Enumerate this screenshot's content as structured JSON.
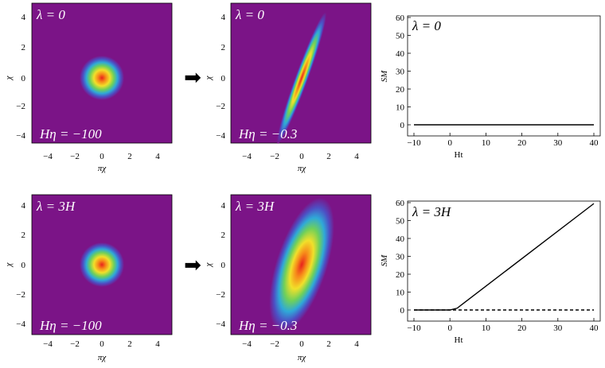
{
  "axes": {
    "phase_x_label": "πχ",
    "phase_y_label": "χ",
    "phase_ticks": [
      "-4",
      "-2",
      "0",
      "2",
      "4"
    ],
    "entropy_x_label": "Ht",
    "entropy_y_label": "SM",
    "entropy_x_ticks": [
      "-10",
      "0",
      "10",
      "20",
      "30",
      "40"
    ],
    "entropy_y_ticks": [
      "0",
      "10",
      "20",
      "30",
      "40",
      "50",
      "60"
    ]
  },
  "rows": [
    {
      "lambda_label": "λ = 0",
      "early_time_label": "Hη = −100",
      "late_time_label": "Hη = −0.3",
      "arrow": "➡"
    },
    {
      "lambda_label": "λ = 3H",
      "early_time_label": "Hη = −100",
      "late_time_label": "Hη = −0.3",
      "arrow": "➡"
    }
  ],
  "chart_data": [
    {
      "type": "line",
      "title": "λ = 0",
      "xlabel": "Ht",
      "ylabel": "SM",
      "xlim": [
        -10,
        40
      ],
      "ylim": [
        0,
        60
      ],
      "series": [
        {
          "style": "solid",
          "x": [
            -10,
            40
          ],
          "y": [
            0,
            0
          ]
        }
      ]
    },
    {
      "type": "line",
      "title": "λ = 3H",
      "xlabel": "Ht",
      "ylabel": "SM",
      "xlim": [
        -10,
        40
      ],
      "ylim": [
        0,
        60
      ],
      "series": [
        {
          "style": "solid",
          "x": [
            -10,
            0,
            2,
            40
          ],
          "y": [
            0,
            0,
            1,
            59.5
          ]
        },
        {
          "style": "dashed",
          "x": [
            -10,
            40
          ],
          "y": [
            0,
            0
          ]
        }
      ]
    }
  ]
}
